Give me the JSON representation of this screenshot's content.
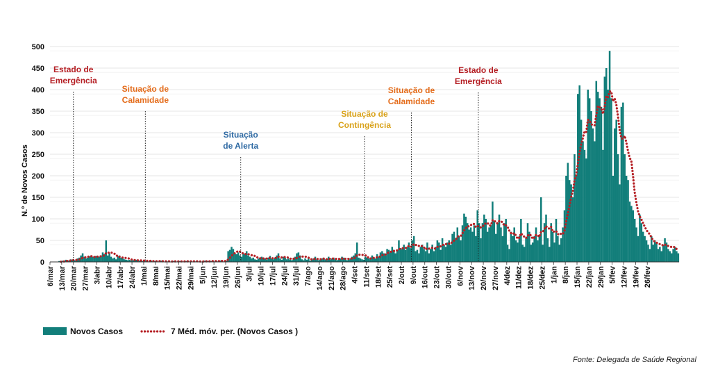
{
  "chart_data": {
    "type": "bar",
    "ylabel": "N.º de Novos Casos",
    "ylim": [
      0,
      500
    ],
    "yticks": [
      0,
      50,
      100,
      150,
      200,
      250,
      300,
      350,
      400,
      450,
      500
    ],
    "grid": true,
    "x_start": "6/mar/2020",
    "x_end": "3/mar/2021",
    "x_tick_labels": [
      "6/mar",
      "13/mar",
      "20/mar",
      "27/mar",
      "3/abr",
      "10/abr",
      "17/abr",
      "24/abr",
      "1/mai",
      "8/mai",
      "15/mai",
      "22/mai",
      "29/mai",
      "5/jun",
      "12/jun",
      "19/jun",
      "26/jun",
      "3/jul",
      "10/jul",
      "17/jul",
      "24/jul",
      "31/jul",
      "7/ago",
      "14/ago",
      "21/ago",
      "28/ago",
      "4/set",
      "11/set",
      "18/set",
      "25/set",
      "2/out",
      "9/out",
      "16/out",
      "23/out",
      "30/out",
      "6/nov",
      "13/nov",
      "20/nov",
      "27/nov",
      "4/dez",
      "11/dez",
      "18/dez",
      "25/dez",
      "1/jan",
      "8/jan",
      "15/jan",
      "22/jan",
      "29/jan",
      "5/fev",
      "12/fev",
      "19/fev",
      "26/fev"
    ],
    "series": [
      {
        "name": "Novos Casos",
        "kind": "bar",
        "color": "#127e7a"
      },
      {
        "name": "7 Méd. móv. per. (Novos Casos )",
        "kind": "dotted-line",
        "color": "#b51f24"
      }
    ],
    "daily_new_cases_estimate": [
      0,
      0,
      0,
      0,
      0,
      2,
      1,
      3,
      2,
      5,
      4,
      3,
      6,
      5,
      4,
      3,
      8,
      10,
      15,
      20,
      12,
      8,
      10,
      13,
      15,
      12,
      10,
      14,
      13,
      12,
      15,
      22,
      18,
      50,
      15,
      20,
      12,
      8,
      10,
      6,
      13,
      15,
      10,
      8,
      6,
      5,
      4,
      5,
      3,
      4,
      3,
      5,
      2,
      3,
      4,
      2,
      3,
      2,
      1,
      2,
      3,
      1,
      2,
      1,
      1,
      2,
      3,
      1,
      0,
      2,
      1,
      1,
      0,
      2,
      3,
      1,
      1,
      2,
      0,
      1,
      1,
      2,
      3,
      1,
      2,
      0,
      1,
      2,
      1,
      1,
      0,
      2,
      3,
      1,
      2,
      1,
      2,
      3,
      1,
      2,
      1,
      3,
      4,
      1,
      2,
      3,
      25,
      28,
      35,
      30,
      20,
      18,
      22,
      15,
      12,
      18,
      20,
      25,
      15,
      12,
      8,
      10,
      6,
      5,
      8,
      10,
      12,
      6,
      8,
      5,
      10,
      14,
      8,
      6,
      10,
      15,
      20,
      8,
      5,
      12,
      10,
      6,
      8,
      5,
      4,
      8,
      12,
      20,
      22,
      15,
      6,
      4,
      8,
      5,
      10,
      3,
      5,
      8,
      12,
      6,
      4,
      5,
      8,
      10,
      6,
      4,
      12,
      5,
      8,
      10,
      6,
      4,
      5,
      8,
      12,
      10,
      6,
      4,
      5,
      8,
      12,
      15,
      20,
      45,
      10,
      8,
      6,
      5,
      12,
      10,
      8,
      6,
      15,
      10,
      8,
      18,
      12,
      22,
      25,
      20,
      15,
      30,
      28,
      22,
      35,
      28,
      20,
      25,
      50,
      32,
      30,
      40,
      28,
      35,
      45,
      32,
      50,
      60,
      25,
      28,
      20,
      35,
      40,
      30,
      25,
      45,
      20,
      30,
      40,
      25,
      35,
      50,
      45,
      28,
      55,
      40,
      35,
      45,
      50,
      40,
      65,
      70,
      55,
      80,
      60,
      50,
      85,
      112,
      105,
      90,
      75,
      80,
      70,
      85,
      60,
      120,
      90,
      55,
      90,
      110,
      100,
      70,
      80,
      85,
      140,
      95,
      65,
      90,
      110,
      80,
      60,
      90,
      100,
      40,
      30,
      70,
      60,
      80,
      50,
      45,
      60,
      100,
      40,
      35,
      55,
      90,
      70,
      40,
      45,
      60,
      80,
      50,
      60,
      150,
      40,
      90,
      110,
      55,
      35,
      90,
      70,
      45,
      100,
      60,
      40,
      55,
      80,
      120,
      200,
      230,
      190,
      180,
      150,
      250,
      200,
      390,
      410,
      330,
      280,
      260,
      240,
      400,
      380,
      350,
      310,
      280,
      420,
      395,
      380,
      360,
      260,
      430,
      450,
      400,
      490,
      380,
      200,
      310,
      330,
      250,
      180,
      360,
      370,
      250,
      200,
      190,
      140,
      130,
      120,
      100,
      80,
      60,
      110,
      90,
      70,
      60,
      50,
      40,
      30,
      60,
      40,
      50,
      45,
      30,
      35,
      25,
      40,
      55,
      45,
      30,
      25,
      20,
      30,
      35,
      25,
      20
    ]
  },
  "legend": {
    "bar_label": "Novos Casos",
    "line_label": "7 Méd. móv. per. (Novos Casos )"
  },
  "annotations": [
    {
      "id": "emergencia-1",
      "lines": [
        "Estado de",
        "Emergência"
      ],
      "color": "#b51f24",
      "date_index": 14
    },
    {
      "id": "calamidade-1",
      "lines": [
        "Situação de",
        "Calamidade"
      ],
      "color": "#e46c1b",
      "date_index": 57
    },
    {
      "id": "alerta",
      "lines": [
        "Situação",
        "de Alerta"
      ],
      "color": "#2f6aa3",
      "date_index": 114
    },
    {
      "id": "contingencia",
      "lines": [
        "Situação de",
        "Contingência"
      ],
      "color": "#d9a21a",
      "date_index": 188
    },
    {
      "id": "calamidade-2",
      "lines": [
        "Situação de",
        "Calamidade"
      ],
      "color": "#e46c1b",
      "date_index": 216
    },
    {
      "id": "emergencia-2",
      "lines": [
        "Estado de",
        "Emergência"
      ],
      "color": "#b51f24",
      "date_index": 256
    }
  ],
  "source": "Fonte: Delegada de Saúde Regional"
}
